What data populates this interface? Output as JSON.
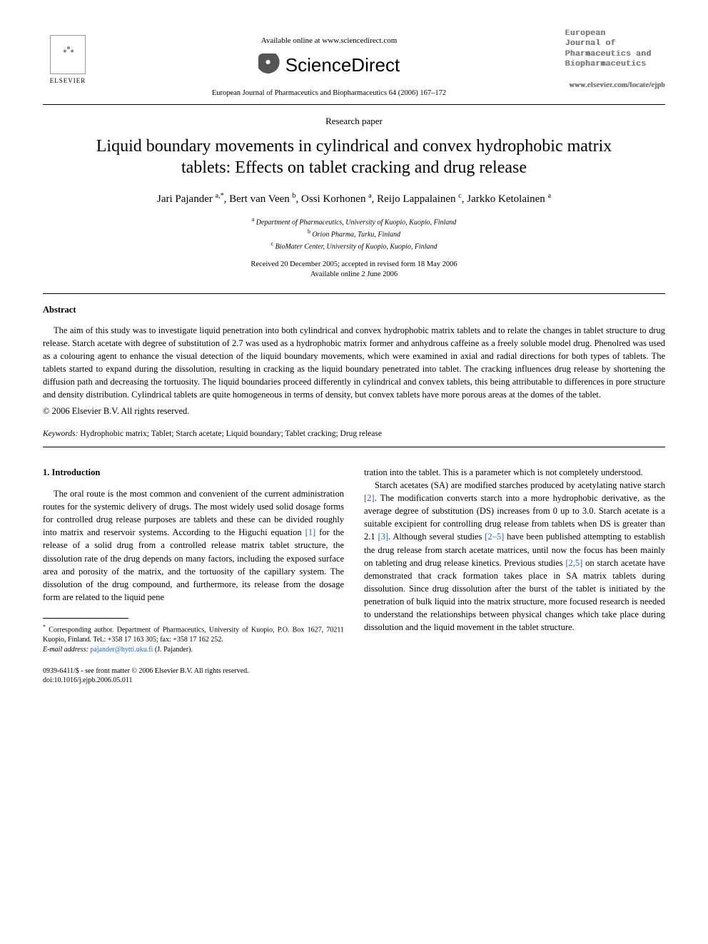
{
  "header": {
    "available_online": "Available online at www.sciencedirect.com",
    "sciencedirect": "ScienceDirect",
    "journal_ref": "European Journal of Pharmaceutics and Biopharmaceutics 64 (2006) 167–172",
    "elsevier_label": "ELSEVIER",
    "journal_name_lines": [
      "European",
      "Journal of",
      "Pharmaceutics and",
      "Biopharmaceutics"
    ],
    "journal_url": "www.elsevier.com/locate/ejpb"
  },
  "paper": {
    "type": "Research paper",
    "title": "Liquid boundary movements in cylindrical and convex hydrophobic matrix tablets: Effects on tablet cracking and drug release",
    "authors_html": "Jari Pajander <sup>a,*</sup>, Bert van Veen <sup>b</sup>, Ossi Korhonen <sup>a</sup>, Reijo Lappalainen <sup>c</sup>, Jarkko Ketolainen <sup>a</sup>",
    "affiliations": {
      "a": "Department of Pharmaceutics, University of Kuopio, Kuopio, Finland",
      "b": "Orion Pharma, Turku, Finland",
      "c": "BioMater Center, University of Kuopio, Kuopio, Finland"
    },
    "received": "Received 20 December 2005; accepted in revised form 18 May 2006",
    "available": "Available online 2 June 2006"
  },
  "abstract": {
    "heading": "Abstract",
    "body": "The aim of this study was to investigate liquid penetration into both cylindrical and convex hydrophobic matrix tablets and to relate the changes in tablet structure to drug release. Starch acetate with degree of substitution of 2.7 was used as a hydrophobic matrix former and anhydrous caffeine as a freely soluble model drug. Phenolred was used as a colouring agent to enhance the visual detection of the liquid boundary movements, which were examined in axial and radial directions for both types of tablets. The tablets started to expand during the dissolution, resulting in cracking as the liquid boundary penetrated into tablet. The cracking influences drug release by shortening the diffusion path and decreasing the tortuosity. The liquid boundaries proceed differently in cylindrical and convex tablets, this being attributable to differences in pore structure and density distribution. Cylindrical tablets are quite homogeneous in terms of density, but convex tablets have more porous areas at the domes of the tablet.",
    "copyright": "© 2006 Elsevier B.V. All rights reserved."
  },
  "keywords": {
    "label": "Keywords:",
    "list": "Hydrophobic matrix; Tablet; Starch acetate; Liquid boundary; Tablet cracking; Drug release"
  },
  "intro": {
    "heading": "1. Introduction",
    "col1_p1_a": "The oral route is the most common and convenient of the current administration routes for the systemic delivery of drugs. The most widely used solid dosage forms for controlled drug release purposes are tablets and these can be divided roughly into matrix and reservoir systems. According to the Higuchi equation ",
    "ref1": "[1]",
    "col1_p1_b": " for the release of a solid drug from a controlled release matrix tablet structure, the dissolution rate of the drug depends on many factors, including the exposed surface area and porosity of the matrix, and the tortuosity of the capillary system. The dissolution of the drug compound, and furthermore, its release from the dosage form are related to the liquid pene",
    "col2_cont": "tration into the tablet. This is a parameter which is not completely understood.",
    "col2_p2_a": "Starch acetates (SA) are modified starches produced by acetylating native starch ",
    "ref2": "[2]",
    "col2_p2_b": ". The modification converts starch into a more hydrophobic derivative, as the average degree of substitution (DS) increases from 0 up to 3.0. Starch acetate is a suitable excipient for controlling drug release from tablets when DS is greater than 2.1 ",
    "ref3": "[3]",
    "col2_p2_c": ". Although several studies ",
    "ref25": "[2–5]",
    "col2_p2_d": " have been published attempting to establish the drug release from starch acetate matrices, until now the focus has been mainly on tableting and drug release kinetics. Previous studies ",
    "ref25b": "[2,5]",
    "col2_p2_e": " on starch acetate have demonstrated that crack formation takes place in SA matrix tablets during dissolution. Since drug dissolution after the burst of the tablet is initiated by the penetration of bulk liquid into the matrix structure, more focused research is needed to understand the relationships between physical changes which take place during dissolution and the liquid movement in the tablet structure."
  },
  "footnotes": {
    "corr": "Corresponding author. Department of Pharmaceutics, University of Kuopio, P.O. Box 1627, 70211 Kuopio, Finland. Tel.: +358 17 163 305; fax: +358 17 162 252.",
    "email_label": "E-mail address:",
    "email": "pajander@hytti.uku.fi",
    "email_who": "(J. Pajander)."
  },
  "bottom": {
    "issn": "0939-6411/$ - see front matter © 2006 Elsevier B.V. All rights reserved.",
    "doi": "doi:10.1016/j.ejpb.2006.05.011"
  },
  "colors": {
    "link": "#2b5fb8",
    "text": "#000000",
    "bg": "#ffffff"
  }
}
